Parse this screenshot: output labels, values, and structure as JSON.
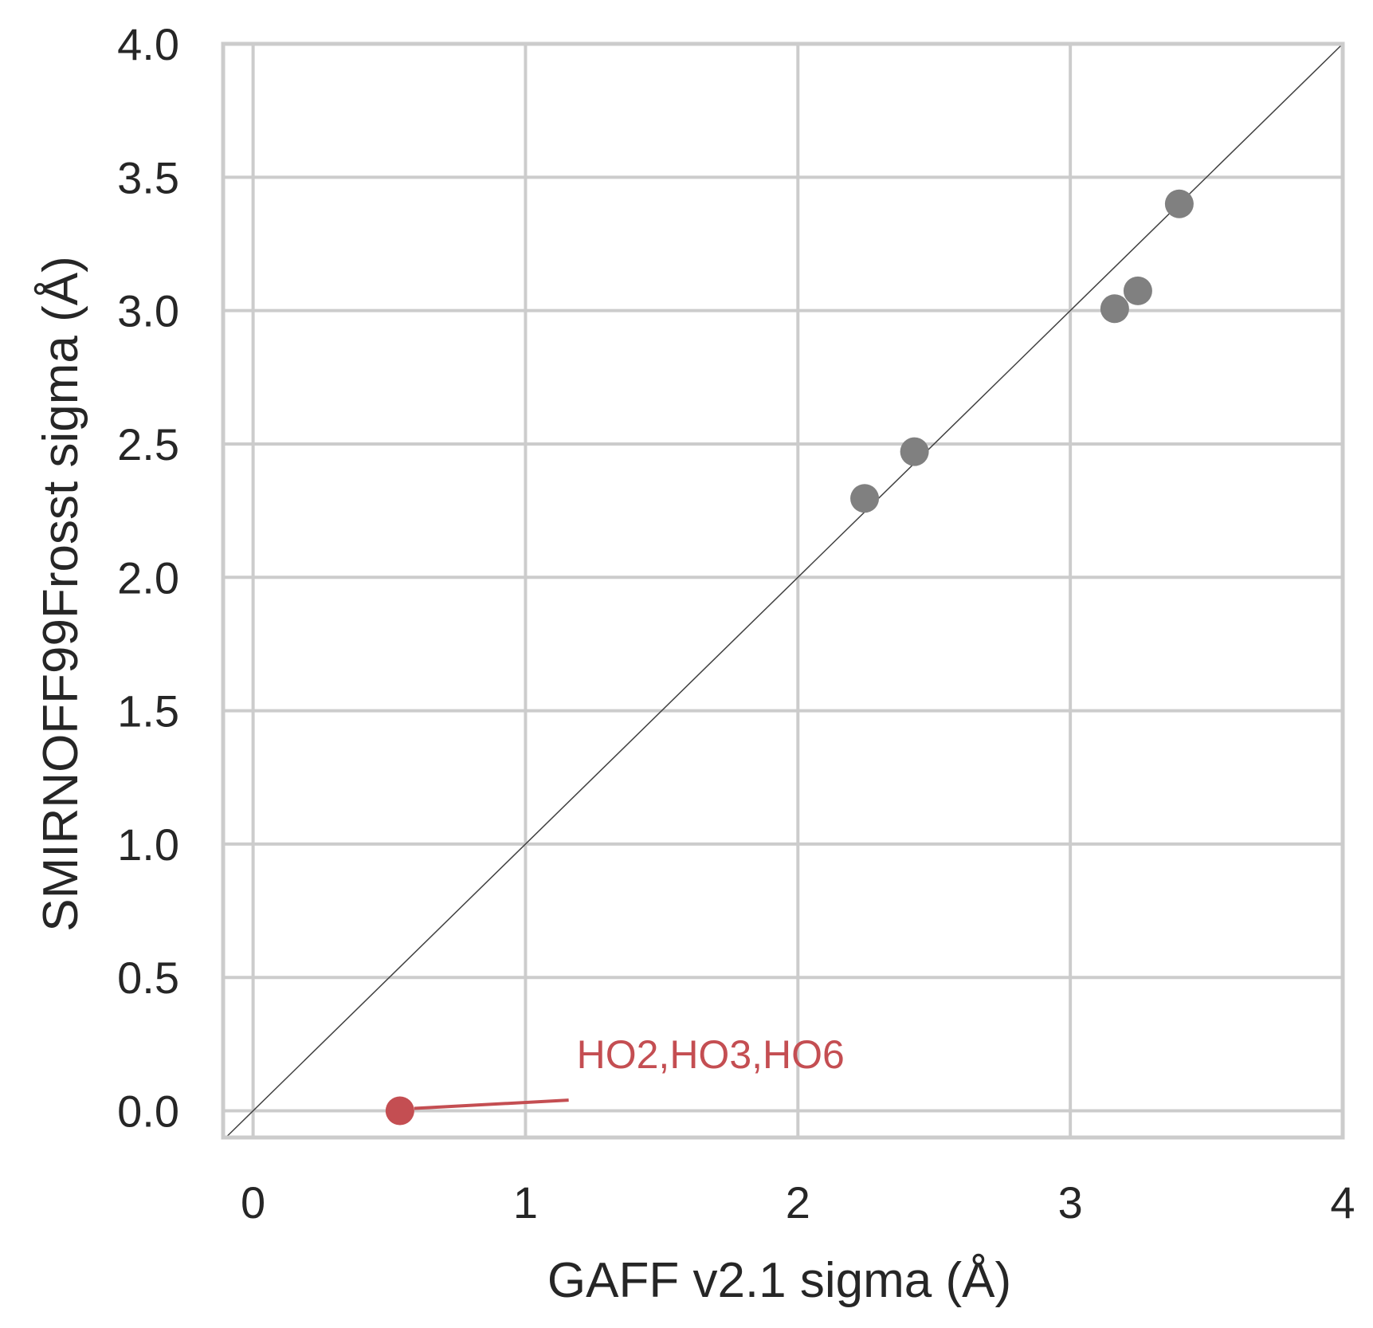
{
  "chart_data": {
    "type": "scatter",
    "xlabel": "GAFF v2.1 sigma (Å)",
    "ylabel": "SMIRNOFF99Frosst sigma (Å)",
    "xlim": [
      -0.11,
      4.0
    ],
    "ylim": [
      -0.1,
      4.0
    ],
    "x_ticks": [
      0,
      1,
      2,
      3,
      4
    ],
    "x_tick_labels": [
      "0",
      "1",
      "2",
      "3",
      "4"
    ],
    "y_ticks": [
      0.0,
      0.5,
      1.0,
      1.5,
      2.0,
      2.5,
      3.0,
      3.5,
      4.0
    ],
    "y_tick_labels": [
      "0.0",
      "0.5",
      "1.0",
      "1.5",
      "2.0",
      "2.5",
      "3.0",
      "3.5",
      "4.0"
    ],
    "grid": true,
    "reference_line": "y = x",
    "series": [
      {
        "color": "#808080",
        "points": [
          {
            "x": 2.245,
            "y": 2.296
          },
          {
            "x": 2.428,
            "y": 2.471
          },
          {
            "x": 3.163,
            "y": 3.007
          },
          {
            "x": 3.248,
            "y": 3.074
          },
          {
            "x": 3.4,
            "y": 3.4
          }
        ]
      },
      {
        "color": "#c44e52",
        "points": [
          {
            "x": 0.539,
            "y": 0.0
          }
        ]
      }
    ],
    "annotations": [
      {
        "text": "HO2,HO3,HO6",
        "x": 0.539,
        "y": 0.0,
        "text_x": 1.1,
        "text_y": 0.07,
        "color": "#c44e52"
      }
    ],
    "colors": {
      "grid": "#cccccc",
      "frame": "#cccccc",
      "diagonal": "#404040",
      "text": "#262626"
    }
  }
}
